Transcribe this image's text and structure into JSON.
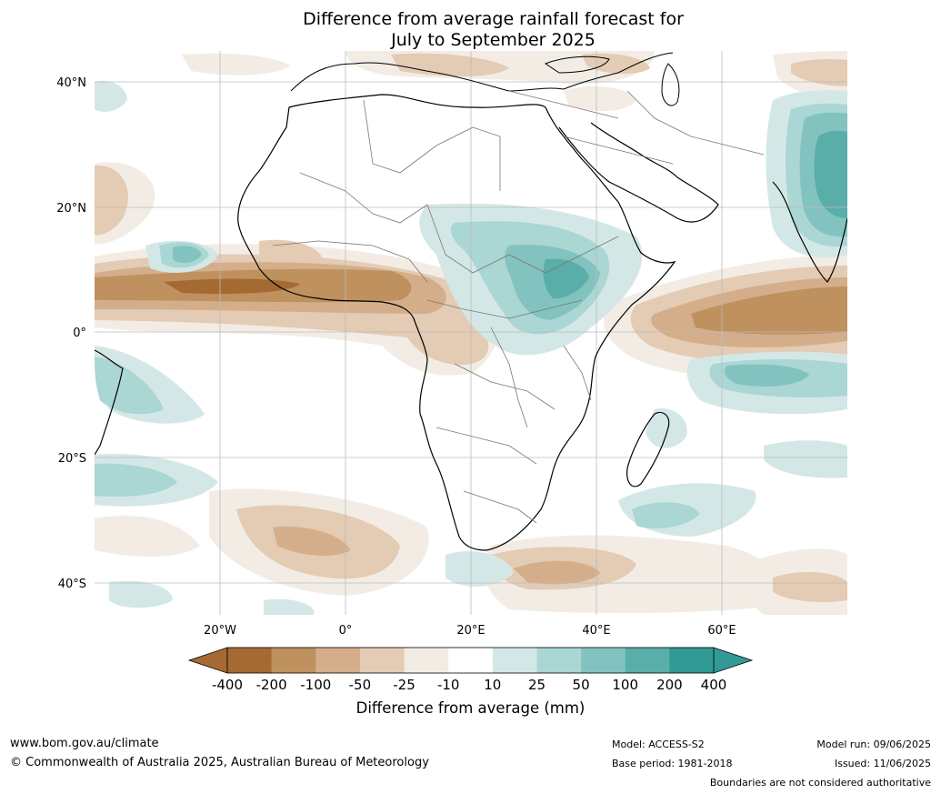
{
  "title": {
    "line1": "Difference from average rainfall forecast for",
    "line2": "July to September 2025"
  },
  "map": {
    "lat_labels": [
      "40°N",
      "20°N",
      "0°",
      "20°S",
      "40°S"
    ],
    "lon_labels": [
      "20°W",
      "0°",
      "20°E",
      "40°E",
      "60°E"
    ],
    "colors": {
      "c_m400": "#a56a33",
      "c_m200": "#be915e",
      "c_m100": "#d4ae8a",
      "c_m50": "#e3cbb4",
      "c_m25": "#f2ece5",
      "c_0": "#ffffff",
      "c_p25": "#d3e8e6",
      "c_p50": "#aad6d3",
      "c_p100": "#83c3bf",
      "c_p200": "#5aaeaa",
      "c_p400": "#319a94",
      "land_border": "#000000",
      "country_border": "#777777",
      "grid": "#bbbbbb"
    }
  },
  "colorbar": {
    "ticks": [
      "-400",
      "-200",
      "-100",
      "-50",
      "-25",
      "-10",
      "10",
      "25",
      "50",
      "100",
      "200",
      "400"
    ],
    "colors": [
      "#a56a33",
      "#be915e",
      "#d4ae8a",
      "#e3cbb4",
      "#f2ece5",
      "#ffffff",
      "#d3e8e6",
      "#aad6d3",
      "#83c3bf",
      "#5aaeaa",
      "#319a94"
    ],
    "label": "Difference from average (mm)"
  },
  "footer": {
    "website": "www.bom.gov.au/climate",
    "copyright": "© Commonwealth of Australia 2025, Australian Bureau of Meteorology",
    "model": "Model: ACCESS-S2",
    "base_period": "Base period: 1981-2018",
    "model_run": "Model run: 09/06/2025",
    "issued": "Issued: 11/06/2025",
    "disclaimer": "Boundaries are not considered authoritative"
  }
}
